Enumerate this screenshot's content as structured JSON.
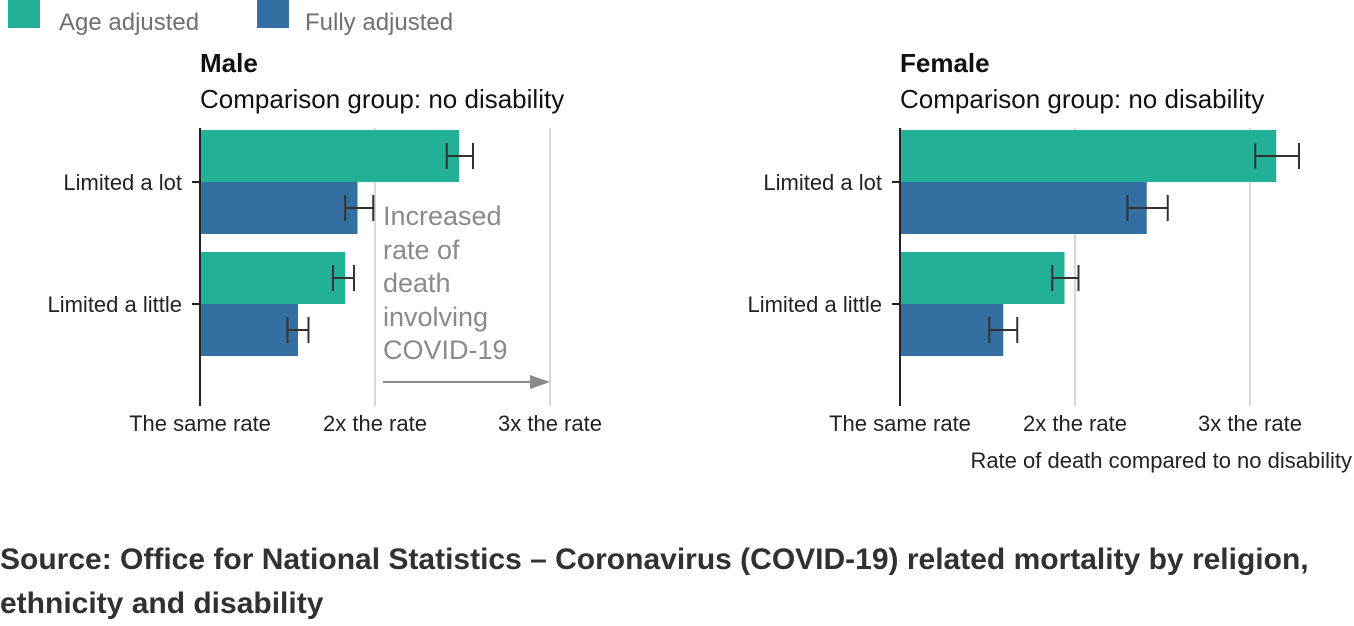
{
  "legend": [
    {
      "label": "Age adjusted",
      "color": "#22b096"
    },
    {
      "label": "Fully adjusted",
      "color": "#336fa0"
    }
  ],
  "annotation": {
    "lines": [
      "Increased",
      "rate of",
      "death",
      "involving",
      "COVID-19"
    ]
  },
  "x_axis_title": "Rate of death compared to no disability",
  "source": "Source: Office for National Statistics – Coronavirus (COVID-19) related mortality by religion, ethnicity and disability",
  "chart_data": [
    {
      "type": "bar",
      "orientation": "horizontal",
      "title": "Male",
      "subtitle": "Comparison group: no disability",
      "categories": [
        "Limited a lot",
        "Limited a little"
      ],
      "series": [
        {
          "name": "Age adjusted",
          "values": [
            2.48,
            1.83
          ],
          "ci_low": [
            2.41,
            1.76
          ],
          "ci_high": [
            2.56,
            1.88
          ]
        },
        {
          "name": "Fully adjusted",
          "values": [
            1.9,
            1.56
          ],
          "ci_low": [
            1.83,
            1.5
          ],
          "ci_high": [
            1.99,
            1.62
          ]
        }
      ],
      "xlim": [
        1,
        3
      ],
      "xticks": [
        1,
        2,
        3
      ],
      "xtick_labels": [
        "The same rate",
        "2x the rate",
        "3x the rate"
      ],
      "grid": true
    },
    {
      "type": "bar",
      "orientation": "horizontal",
      "title": "Female",
      "subtitle": "Comparison group: no disability",
      "categories": [
        "Limited a lot",
        "Limited a little"
      ],
      "series": [
        {
          "name": "Age adjusted",
          "values": [
            3.15,
            1.94
          ],
          "ci_low": [
            3.03,
            1.87
          ],
          "ci_high": [
            3.28,
            2.02
          ]
        },
        {
          "name": "Fully adjusted",
          "values": [
            2.41,
            1.59
          ],
          "ci_low": [
            2.3,
            1.51
          ],
          "ci_high": [
            2.53,
            1.67
          ]
        }
      ],
      "xlim": [
        1,
        3
      ],
      "xticks": [
        1,
        2,
        3
      ],
      "xtick_labels": [
        "The same rate",
        "2x the rate",
        "3x the rate"
      ],
      "grid": true
    }
  ]
}
